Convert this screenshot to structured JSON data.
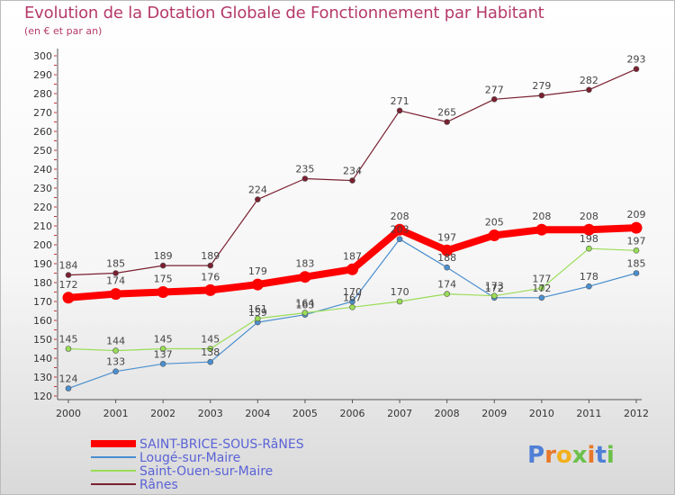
{
  "title": "Evolution de la Dotation Globale de Fonctionnement par Habitant",
  "subtitle": "(en € et par an)",
  "logo": {
    "text": "Proxiti",
    "letter_colors": [
      "#4f7fd6",
      "#e8782a",
      "#f2b01e",
      "#6cc04a",
      "#e8782a",
      "#4f7fd6",
      "#6cc04a"
    ]
  },
  "chart_data": {
    "type": "line",
    "title": "Evolution de la Dotation Globale de Fonctionnement par Habitant",
    "subtitle": "(en € et par an)",
    "xlabel": "",
    "ylabel": "",
    "x": [
      "2000",
      "2001",
      "2002",
      "2003",
      "2004",
      "2005",
      "2006",
      "2007",
      "2008",
      "2009",
      "2010",
      "2011",
      "2012"
    ],
    "ylim": [
      120,
      300
    ],
    "yticks": [
      120,
      130,
      140,
      150,
      160,
      170,
      180,
      190,
      200,
      210,
      220,
      230,
      240,
      250,
      260,
      270,
      280,
      290,
      300
    ],
    "grid": false,
    "legend_position": "bottom-left",
    "series": [
      {
        "name": "SAINT-BRICE-SOUS-RâNES",
        "color": "#ff0000",
        "emphasis": true,
        "values": [
          172,
          174,
          175,
          176,
          179,
          183,
          187,
          208,
          197,
          205,
          208,
          208,
          209
        ]
      },
      {
        "name": "Lougé-sur-Maire",
        "color": "#4a8fd0",
        "emphasis": false,
        "values": [
          124,
          133,
          137,
          138,
          159,
          163,
          170,
          203,
          188,
          172,
          172,
          178,
          185
        ]
      },
      {
        "name": "Saint-Ouen-sur-Maire",
        "color": "#99dd55",
        "emphasis": false,
        "values": [
          145,
          144,
          145,
          145,
          161,
          164,
          167,
          170,
          174,
          173,
          177,
          198,
          197
        ]
      },
      {
        "name": "Rânes",
        "color": "#7a2030",
        "emphasis": false,
        "values": [
          184,
          185,
          189,
          189,
          224,
          235,
          234,
          271,
          265,
          277,
          279,
          282,
          293
        ]
      }
    ]
  }
}
